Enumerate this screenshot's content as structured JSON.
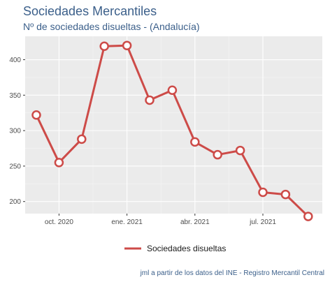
{
  "chart_data": {
    "type": "line",
    "title": "Sociedades Mercantiles",
    "subtitle": "Nº de sociedades disueltas - (Andalucía)",
    "x": [
      "2020-09",
      "2020-10",
      "2020-11",
      "2020-12",
      "2021-01",
      "2021-02",
      "2021-03",
      "2021-04",
      "2021-05",
      "2021-06",
      "2021-07",
      "2021-08",
      "2021-09"
    ],
    "x_ticks": [
      {
        "label": "oct. 2020",
        "index": 1
      },
      {
        "label": "ene. 2021",
        "index": 4
      },
      {
        "label": "abr. 2021",
        "index": 7
      },
      {
        "label": "jul. 2021",
        "index": 10
      }
    ],
    "y_ticks": [
      200,
      250,
      300,
      350,
      400
    ],
    "ylim": [
      183,
      433
    ],
    "series": [
      {
        "name": "Sociedades disueltas",
        "color": "#cd4b48",
        "values": [
          322,
          255,
          288,
          419,
          420,
          343,
          357,
          284,
          266,
          272,
          213,
          210,
          179
        ]
      }
    ],
    "grid": true,
    "legend_position": "bottom",
    "caption": "jml a partir de los datos del INE - Registro Mercantil Central"
  }
}
